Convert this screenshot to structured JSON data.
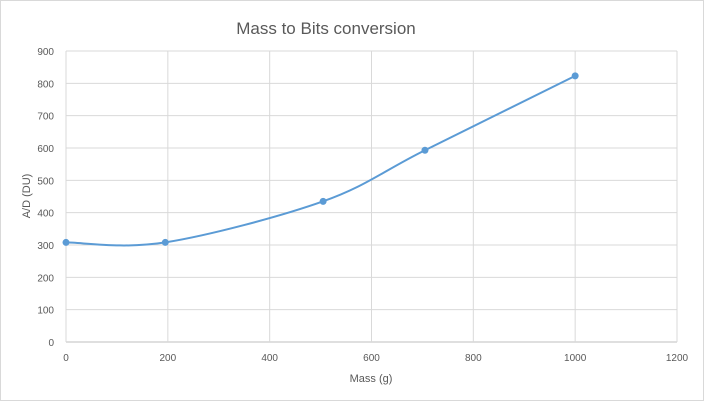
{
  "chart_data": {
    "type": "scatter",
    "title": "Mass to Bits conversion",
    "xlabel": "Mass (g)",
    "ylabel": "A/D (DU)",
    "xlim": [
      0,
      1200
    ],
    "ylim": [
      0,
      900
    ],
    "xticks": [
      0,
      200,
      400,
      600,
      800,
      1000,
      1200
    ],
    "yticks": [
      0,
      100,
      200,
      300,
      400,
      500,
      600,
      700,
      800,
      900
    ],
    "grid": true,
    "smooth_line": true,
    "series": [
      {
        "x": [
          0,
          195,
          505,
          705,
          1000
        ],
        "y": [
          308,
          308,
          435,
          593,
          823
        ],
        "color": "#5b9bd5"
      }
    ]
  }
}
